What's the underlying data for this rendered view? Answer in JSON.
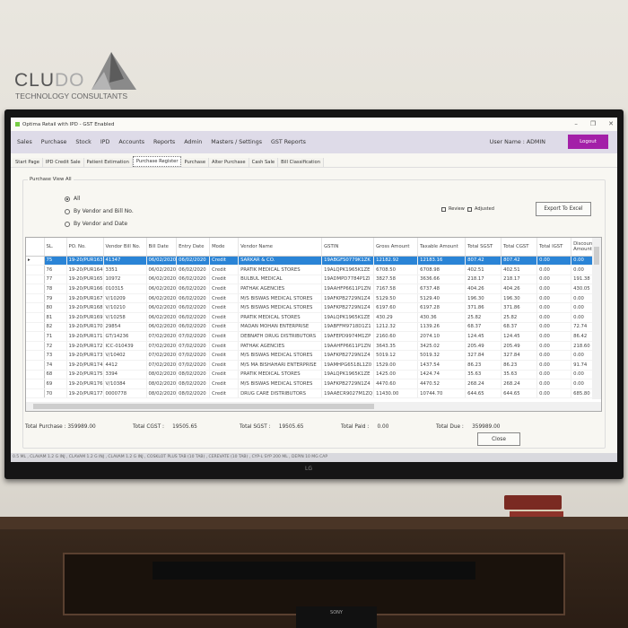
{
  "logo": {
    "brand_a": "CLU",
    "brand_b": "DO",
    "tagline": "TECHNOLOGY CONSULTANTS"
  },
  "window": {
    "title": "Optima Retail with IPD - GST Enabled",
    "controls": [
      "–",
      "❐",
      "✕"
    ]
  },
  "menu": {
    "items": [
      "Sales",
      "Purchase",
      "Stock",
      "IPD",
      "Accounts",
      "Reports",
      "Admin",
      "Masters / Settings",
      "GST Reports"
    ],
    "user": "User Name : ADMIN",
    "logout": "Logout",
    "logout_color": "#a320a8"
  },
  "tabs": [
    {
      "label": "Start Page"
    },
    {
      "label": "IPD Credit Sale"
    },
    {
      "label": "Patient Estimation"
    },
    {
      "label": "Purchase Register",
      "active": true
    },
    {
      "label": "Purchase"
    },
    {
      "label": "Alter Purchase"
    },
    {
      "label": "Cash Sale"
    },
    {
      "label": "Bill Classification"
    }
  ],
  "panel": {
    "title": "Purchase View All",
    "radios": [
      {
        "label": "All",
        "checked": true
      },
      {
        "label": "By Vendor and Bill No.",
        "checked": false
      },
      {
        "label": "By Vendor and Date",
        "checked": false
      }
    ],
    "checkboxes": [
      {
        "label": "Review",
        "checked": false
      },
      {
        "label": "Adjusted",
        "checked": false
      }
    ],
    "export": "Export To Excel",
    "close": "Close"
  },
  "table": {
    "selection_color": "#2a84d6",
    "columns": [
      "SL.",
      "PO. No.",
      "Vendor Bill No.",
      "Bill Date",
      "Entry Date",
      "Mode",
      "Vendor Name",
      "GSTIN",
      "Gross Amount",
      "Taxable Amount",
      "Total SGST",
      "Total CGST",
      "Total IGST",
      "Discount Amount"
    ],
    "rows": [
      [
        "75",
        "19-20/PUR163",
        "41347",
        "06/02/2020",
        "06/02/2020",
        "Credit",
        "SARKAR & CO.",
        "19ABGFS0779K1ZK",
        "12182.92",
        "12183.16",
        "807.42",
        "807.42",
        "0.00",
        "0.00"
      ],
      [
        "76",
        "19-20/PUR164",
        "3351",
        "06/02/2020",
        "06/02/2020",
        "Credit",
        "PRATIK MEDICAL STORES",
        "19ALQPK1965K1ZE",
        "6708.50",
        "6708.98",
        "402.51",
        "402.51",
        "0.00",
        "0.00"
      ],
      [
        "77",
        "19-20/PUR165",
        "10972",
        "06/02/2020",
        "06/02/2020",
        "Credit",
        "BULBUL MEDICAL",
        "19ADMPD7784P1ZI",
        "3827.58",
        "3636.66",
        "218.17",
        "218.17",
        "0.00",
        "191.38"
      ],
      [
        "78",
        "19-20/PUR166",
        "010315",
        "06/02/2020",
        "06/02/2020",
        "Credit",
        "PATHAK AGENCIES",
        "19AAHFP6611P1ZN",
        "7167.58",
        "6737.48",
        "404.26",
        "404.26",
        "0.00",
        "430.05"
      ],
      [
        "79",
        "19-20/PUR167",
        "V/10209",
        "06/02/2020",
        "06/02/2020",
        "Credit",
        "M/S BISWAS MEDICAL STORES",
        "19AFKPB2729N1Z4",
        "5129.50",
        "5129.40",
        "196.30",
        "196.30",
        "0.00",
        "0.00"
      ],
      [
        "80",
        "19-20/PUR168",
        "V/10210",
        "06/02/2020",
        "06/02/2020",
        "Credit",
        "M/S BISWAS MEDICAL STORES",
        "19AFKPB2729N1Z4",
        "6197.60",
        "6197.28",
        "371.86",
        "371.86",
        "0.00",
        "0.00"
      ],
      [
        "81",
        "19-20/PUR169",
        "V/10258",
        "06/02/2020",
        "06/02/2020",
        "Credit",
        "PRATIK MEDICAL STORES",
        "19ALQPK1965K1ZE",
        "430.29",
        "430.36",
        "25.82",
        "25.82",
        "0.00",
        "0.00"
      ],
      [
        "82",
        "19-20/PUR170",
        "29854",
        "06/02/2020",
        "06/02/2020",
        "Credit",
        "MADAN MOHAN ENTERPRISE",
        "19ABFFM9718D1Z1",
        "1212.32",
        "1139.26",
        "68.37",
        "68.37",
        "0.00",
        "72.74"
      ],
      [
        "71",
        "19-20/PUR171",
        "GT/14236",
        "07/02/2020",
        "07/02/2020",
        "Credit",
        "DEBNATH DRUG DISTRIBUTORS",
        "19AFEPD9974M1ZP",
        "2160.60",
        "2074.10",
        "124.45",
        "124.45",
        "0.00",
        "86.42"
      ],
      [
        "72",
        "19-20/PUR172",
        "ICC-010439",
        "07/02/2020",
        "07/02/2020",
        "Credit",
        "PATHAK AGENCIES",
        "19AAHFP6611P1ZN",
        "3643.35",
        "3425.02",
        "205.49",
        "205.49",
        "0.00",
        "218.60"
      ],
      [
        "73",
        "19-20/PUR173",
        "V/10402",
        "07/02/2020",
        "07/02/2020",
        "Credit",
        "M/S BISWAS MEDICAL STORES",
        "19AFKPB2729N1Z4",
        "5019.12",
        "5019.32",
        "327.84",
        "327.84",
        "0.00",
        "0.00"
      ],
      [
        "74",
        "19-20/PUR174",
        "4412",
        "07/02/2020",
        "07/02/2020",
        "Credit",
        "M/S MA BISHAHARI ENTERPRISE",
        "19AMHPG6518L1Z0",
        "1529.00",
        "1437.54",
        "86.23",
        "86.23",
        "0.00",
        "91.74"
      ],
      [
        "68",
        "19-20/PUR175",
        "3394",
        "08/02/2020",
        "08/02/2020",
        "Credit",
        "PRATIK MEDICAL STORES",
        "19ALQPK1965K1ZE",
        "1425.00",
        "1424.74",
        "35.63",
        "35.63",
        "0.00",
        "0.00"
      ],
      [
        "69",
        "19-20/PUR176",
        "V/10384",
        "08/02/2020",
        "08/02/2020",
        "Credit",
        "M/S BISWAS MEDICAL STORES",
        "19AFKPB2729N1Z4",
        "4470.60",
        "4470.52",
        "268.24",
        "268.24",
        "0.00",
        "0.00"
      ],
      [
        "70",
        "19-20/PUR177",
        "0000778",
        "08/02/2020",
        "08/02/2020",
        "Credit",
        "DRUG CARE DISTRIBUTORS",
        "19AAECR9027M1ZQ",
        "11430.00",
        "10744.70",
        "644.65",
        "644.65",
        "0.00",
        "685.80"
      ]
    ]
  },
  "totals": [
    {
      "label": "Total Purchase :",
      "value": "359989.00"
    },
    {
      "label": "Total CGST :",
      "value": "19505.65"
    },
    {
      "label": "Total SGST :",
      "value": "19505.65"
    },
    {
      "label": "Total Paid :",
      "value": "0.00"
    },
    {
      "label": "Total Due :",
      "value": "359989.00"
    }
  ],
  "ticker": "0.5 ML , CLAVAM 1.2 G INJ , CLAVAM 1.2 G INJ , CLAVAM 1.2 G INJ , COSKLOT PLUS TAB (10 TAB) , CEREVATE (10 TAB) , CYP-L SYP 200 ML , DEPIN 10 MG CAP",
  "monitor_brand": "LG",
  "stand_brand": "SONY"
}
